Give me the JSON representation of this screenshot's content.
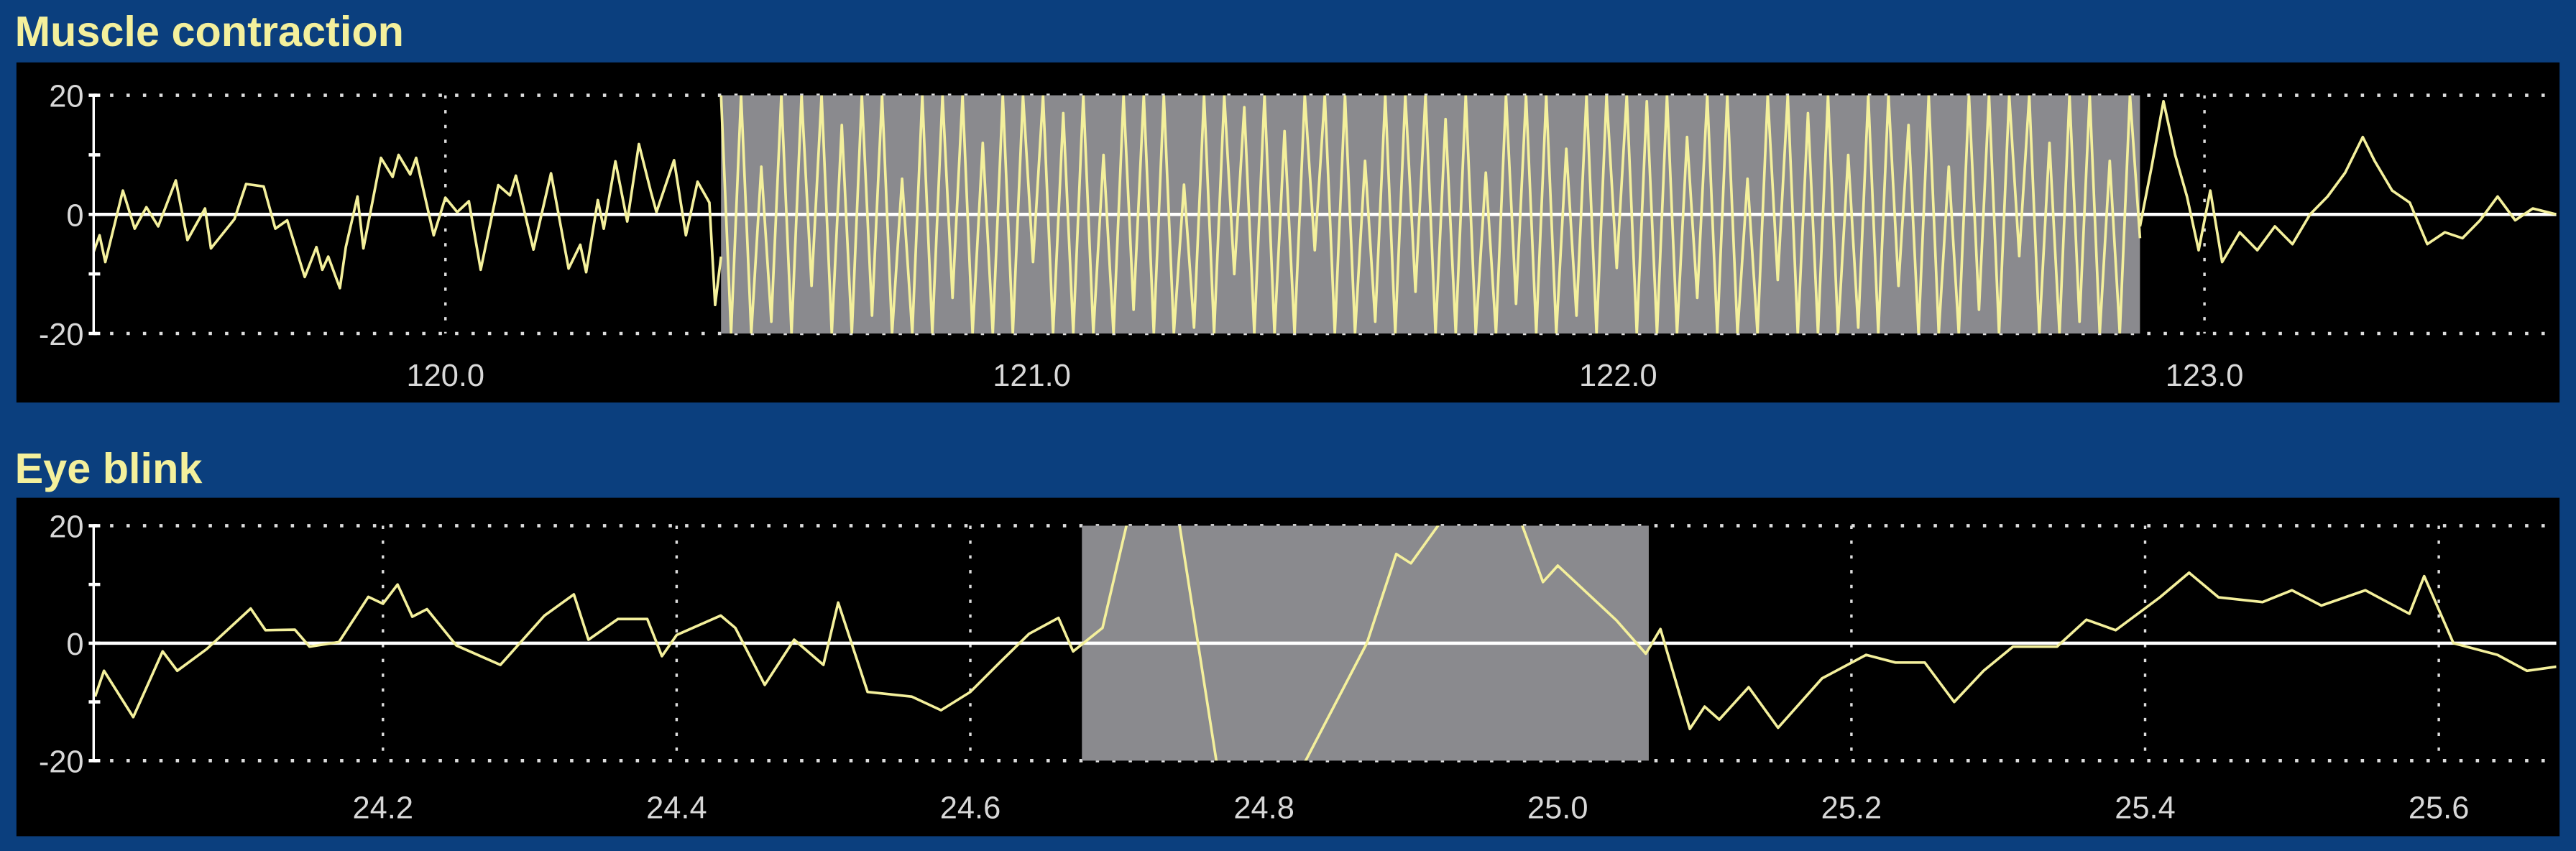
{
  "colors": {
    "background": "#0b3f7e",
    "panel": "#000000",
    "signal": "#f4f09c",
    "highlight": "#8a8a8e",
    "axis": "#ffffff",
    "title": "#f4f09c"
  },
  "chart_data": [
    {
      "type": "line",
      "title": "Muscle contraction",
      "xlabel": "",
      "ylabel": "",
      "xlim": [
        119.4,
        123.6
      ],
      "ylim": [
        -20,
        20
      ],
      "xticks": [
        120.0,
        121.0,
        122.0,
        123.0
      ],
      "xtick_labels": [
        "120.0",
        "121.0",
        "122.0",
        "123.0"
      ],
      "yticks": [
        20,
        0,
        -20
      ],
      "ytick_labels": [
        "20",
        "0",
        "-20"
      ],
      "grid": "dotted at x ticks and y limits",
      "highlight": [
        120.47,
        122.89
      ],
      "series": [
        {
          "points": [
            [
              119.4,
              -6.3
            ],
            [
              119.41,
              -3.5
            ],
            [
              119.42,
              -8
            ],
            [
              119.45,
              4
            ],
            [
              119.47,
              -2.4
            ],
            [
              119.49,
              1.2
            ],
            [
              119.51,
              -2
            ],
            [
              119.54,
              5.7
            ],
            [
              119.56,
              -4.3
            ],
            [
              119.59,
              1
            ],
            [
              119.6,
              -5.7
            ],
            [
              119.64,
              -0.8
            ],
            [
              119.66,
              5.1
            ],
            [
              119.69,
              4.7
            ],
            [
              119.71,
              -2.4
            ],
            [
              119.73,
              -1
            ],
            [
              119.76,
              -10.5
            ],
            [
              119.78,
              -5.5
            ],
            [
              119.79,
              -9.3
            ],
            [
              119.8,
              -7.1
            ],
            [
              119.82,
              -12.4
            ],
            [
              119.83,
              -5.5
            ],
            [
              119.85,
              3
            ],
            [
              119.86,
              -5.7
            ],
            [
              119.89,
              9.5
            ],
            [
              119.91,
              6.3
            ],
            [
              119.92,
              10
            ],
            [
              119.94,
              6.7
            ],
            [
              119.95,
              9.5
            ],
            [
              119.98,
              -3.5
            ],
            [
              120.0,
              2.8
            ],
            [
              120.02,
              0.4
            ],
            [
              120.04,
              2.2
            ],
            [
              120.06,
              -9.3
            ],
            [
              120.09,
              4.9
            ],
            [
              120.11,
              3.2
            ],
            [
              120.12,
              6.5
            ],
            [
              120.15,
              -5.9
            ],
            [
              120.18,
              6.9
            ],
            [
              120.21,
              -9.1
            ],
            [
              120.23,
              -5.1
            ],
            [
              120.24,
              -9.7
            ],
            [
              120.26,
              2.4
            ],
            [
              120.27,
              -2.4
            ],
            [
              120.29,
              8.9
            ],
            [
              120.31,
              -1.2
            ],
            [
              120.33,
              11.8
            ],
            [
              120.35,
              3.9
            ],
            [
              120.36,
              0.4
            ],
            [
              120.39,
              9.1
            ],
            [
              120.41,
              -3.5
            ],
            [
              120.43,
              5.5
            ],
            [
              120.45,
              2
            ],
            [
              120.46,
              -15.2
            ],
            [
              120.47,
              -7.1
            ]
          ]
        },
        {
          "x_range": [
            120.47,
            122.89
          ],
          "values": [
            20,
            -20,
            20,
            -20,
            8,
            -18,
            20,
            -20,
            20,
            -12,
            20,
            -20,
            15,
            -20,
            20,
            -17,
            20,
            -20,
            6,
            -20,
            20,
            -20,
            20,
            -14,
            20,
            -20,
            12,
            -20,
            20,
            -20,
            20,
            -8,
            20,
            -20,
            17,
            -20,
            20,
            -20,
            10,
            -20,
            20,
            -16,
            20,
            -20,
            20,
            -20,
            5,
            -19,
            20,
            -20,
            20,
            -10,
            18,
            -20,
            20,
            -20,
            14,
            -20,
            20,
            -6,
            20,
            -20,
            20,
            -20,
            9,
            -18,
            20,
            -20,
            20,
            -13,
            20,
            -20,
            16,
            -20,
            20,
            -20,
            7,
            -20,
            20,
            -15,
            20,
            -20,
            20,
            -20,
            11,
            -17,
            20,
            -20,
            20,
            -9,
            20,
            -20,
            19,
            -20,
            20,
            -20,
            13,
            -14,
            20,
            -20,
            20,
            -20,
            6,
            -20,
            20,
            -11,
            20,
            -20,
            17,
            -20,
            20,
            -20,
            10,
            -19,
            20,
            -20,
            20,
            -12,
            15,
            -20,
            20,
            -20,
            8,
            -20,
            20,
            -16,
            20,
            -20,
            20,
            -7,
            20,
            -20,
            12,
            -20,
            20,
            -18,
            20,
            -20,
            9,
            -20,
            20,
            -4
          ]
        },
        {
          "points": [
            [
              122.89,
              -2
            ],
            [
              122.91,
              8
            ],
            [
              122.93,
              19
            ],
            [
              122.95,
              10
            ],
            [
              122.97,
              3
            ],
            [
              122.99,
              -6
            ],
            [
              123.01,
              4
            ],
            [
              123.03,
              -8
            ],
            [
              123.06,
              -3
            ],
            [
              123.09,
              -6
            ],
            [
              123.12,
              -2
            ],
            [
              123.15,
              -5
            ],
            [
              123.18,
              0
            ],
            [
              123.21,
              3
            ],
            [
              123.24,
              7
            ],
            [
              123.27,
              13
            ],
            [
              123.29,
              9
            ],
            [
              123.32,
              4
            ],
            [
              123.35,
              2
            ],
            [
              123.38,
              -5
            ],
            [
              123.41,
              -3
            ],
            [
              123.44,
              -4
            ],
            [
              123.47,
              -1
            ],
            [
              123.5,
              3
            ],
            [
              123.53,
              -1
            ],
            [
              123.56,
              1
            ],
            [
              123.6,
              0
            ]
          ]
        }
      ]
    },
    {
      "type": "line",
      "title": "Eye blink",
      "xlabel": "",
      "ylabel": "",
      "xlim": [
        24.003,
        25.68
      ],
      "ylim": [
        -20,
        20
      ],
      "xticks": [
        24.2,
        24.4,
        24.6,
        24.8,
        25.0,
        25.2,
        25.4,
        25.6
      ],
      "xtick_labels": [
        "24.2",
        "24.4",
        "24.6",
        "24.8",
        "25.0",
        "25.2",
        "25.4",
        "25.6"
      ],
      "yticks": [
        20,
        0,
        -20
      ],
      "ytick_labels": [
        "20",
        "0",
        "-20"
      ],
      "grid": "dotted at x ticks and y limits",
      "highlight": [
        24.676,
        25.062
      ],
      "series": [
        {
          "points": [
            [
              24.004,
              -9.1
            ],
            [
              24.01,
              -4.7
            ],
            [
              24.03,
              -12.6
            ],
            [
              24.05,
              -1.4
            ],
            [
              24.06,
              -4.7
            ],
            [
              24.08,
              -1
            ],
            [
              24.11,
              5.9
            ],
            [
              24.12,
              2.2
            ],
            [
              24.14,
              2.3
            ],
            [
              24.15,
              -0.6
            ],
            [
              24.17,
              0.2
            ],
            [
              24.19,
              7.9
            ],
            [
              24.2,
              6.7
            ],
            [
              24.21,
              10
            ],
            [
              24.22,
              4.5
            ],
            [
              24.23,
              5.8
            ],
            [
              24.25,
              -0.4
            ],
            [
              24.28,
              -3.7
            ],
            [
              24.31,
              4.7
            ],
            [
              24.33,
              8.3
            ],
            [
              24.34,
              0.6
            ],
            [
              24.36,
              4.1
            ],
            [
              24.38,
              4.1
            ],
            [
              24.39,
              -2.2
            ],
            [
              24.4,
              1.4
            ],
            [
              24.43,
              4.7
            ],
            [
              24.44,
              2.6
            ],
            [
              24.46,
              -7.1
            ],
            [
              24.48,
              0.6
            ],
            [
              24.5,
              -3.7
            ],
            [
              24.51,
              6.9
            ],
            [
              24.53,
              -8.3
            ],
            [
              24.56,
              -9.1
            ],
            [
              24.58,
              -11.4
            ],
            [
              24.6,
              -8.3
            ],
            [
              24.62,
              -3.3
            ],
            [
              24.64,
              1.6
            ],
            [
              24.66,
              4.3
            ],
            [
              24.67,
              -1.4
            ],
            [
              24.69,
              2.6
            ],
            [
              24.71,
              24
            ],
            [
              24.74,
              24
            ],
            [
              24.77,
              -24
            ],
            [
              24.82,
              -24
            ],
            [
              24.87,
              0
            ],
            [
              24.89,
              15.2
            ],
            [
              24.9,
              13.6
            ],
            [
              24.93,
              24
            ],
            [
              24.97,
              24
            ],
            [
              24.99,
              10.4
            ],
            [
              25.0,
              13.2
            ],
            [
              25.04,
              3.9
            ],
            [
              25.06,
              -1.8
            ],
            [
              25.07,
              2.4
            ],
            [
              25.09,
              -14.6
            ],
            [
              25.1,
              -10.8
            ],
            [
              25.11,
              -13
            ],
            [
              25.13,
              -7.5
            ],
            [
              25.15,
              -14.4
            ],
            [
              25.18,
              -6
            ],
            [
              25.21,
              -2
            ],
            [
              25.23,
              -3.3
            ],
            [
              25.25,
              -3.3
            ],
            [
              25.27,
              -10
            ],
            [
              25.29,
              -4.7
            ],
            [
              25.31,
              -0.6
            ],
            [
              25.34,
              -0.6
            ],
            [
              25.36,
              4
            ],
            [
              25.38,
              2.2
            ],
            [
              25.41,
              7.8
            ],
            [
              25.43,
              12
            ],
            [
              25.45,
              7.8
            ],
            [
              25.48,
              7
            ],
            [
              25.5,
              9
            ],
            [
              25.52,
              6.4
            ],
            [
              25.55,
              9
            ],
            [
              25.58,
              5
            ],
            [
              25.59,
              11.4
            ],
            [
              25.61,
              0
            ],
            [
              25.64,
              -2
            ],
            [
              25.66,
              -4.7
            ],
            [
              25.68,
              -4
            ]
          ]
        }
      ]
    }
  ]
}
